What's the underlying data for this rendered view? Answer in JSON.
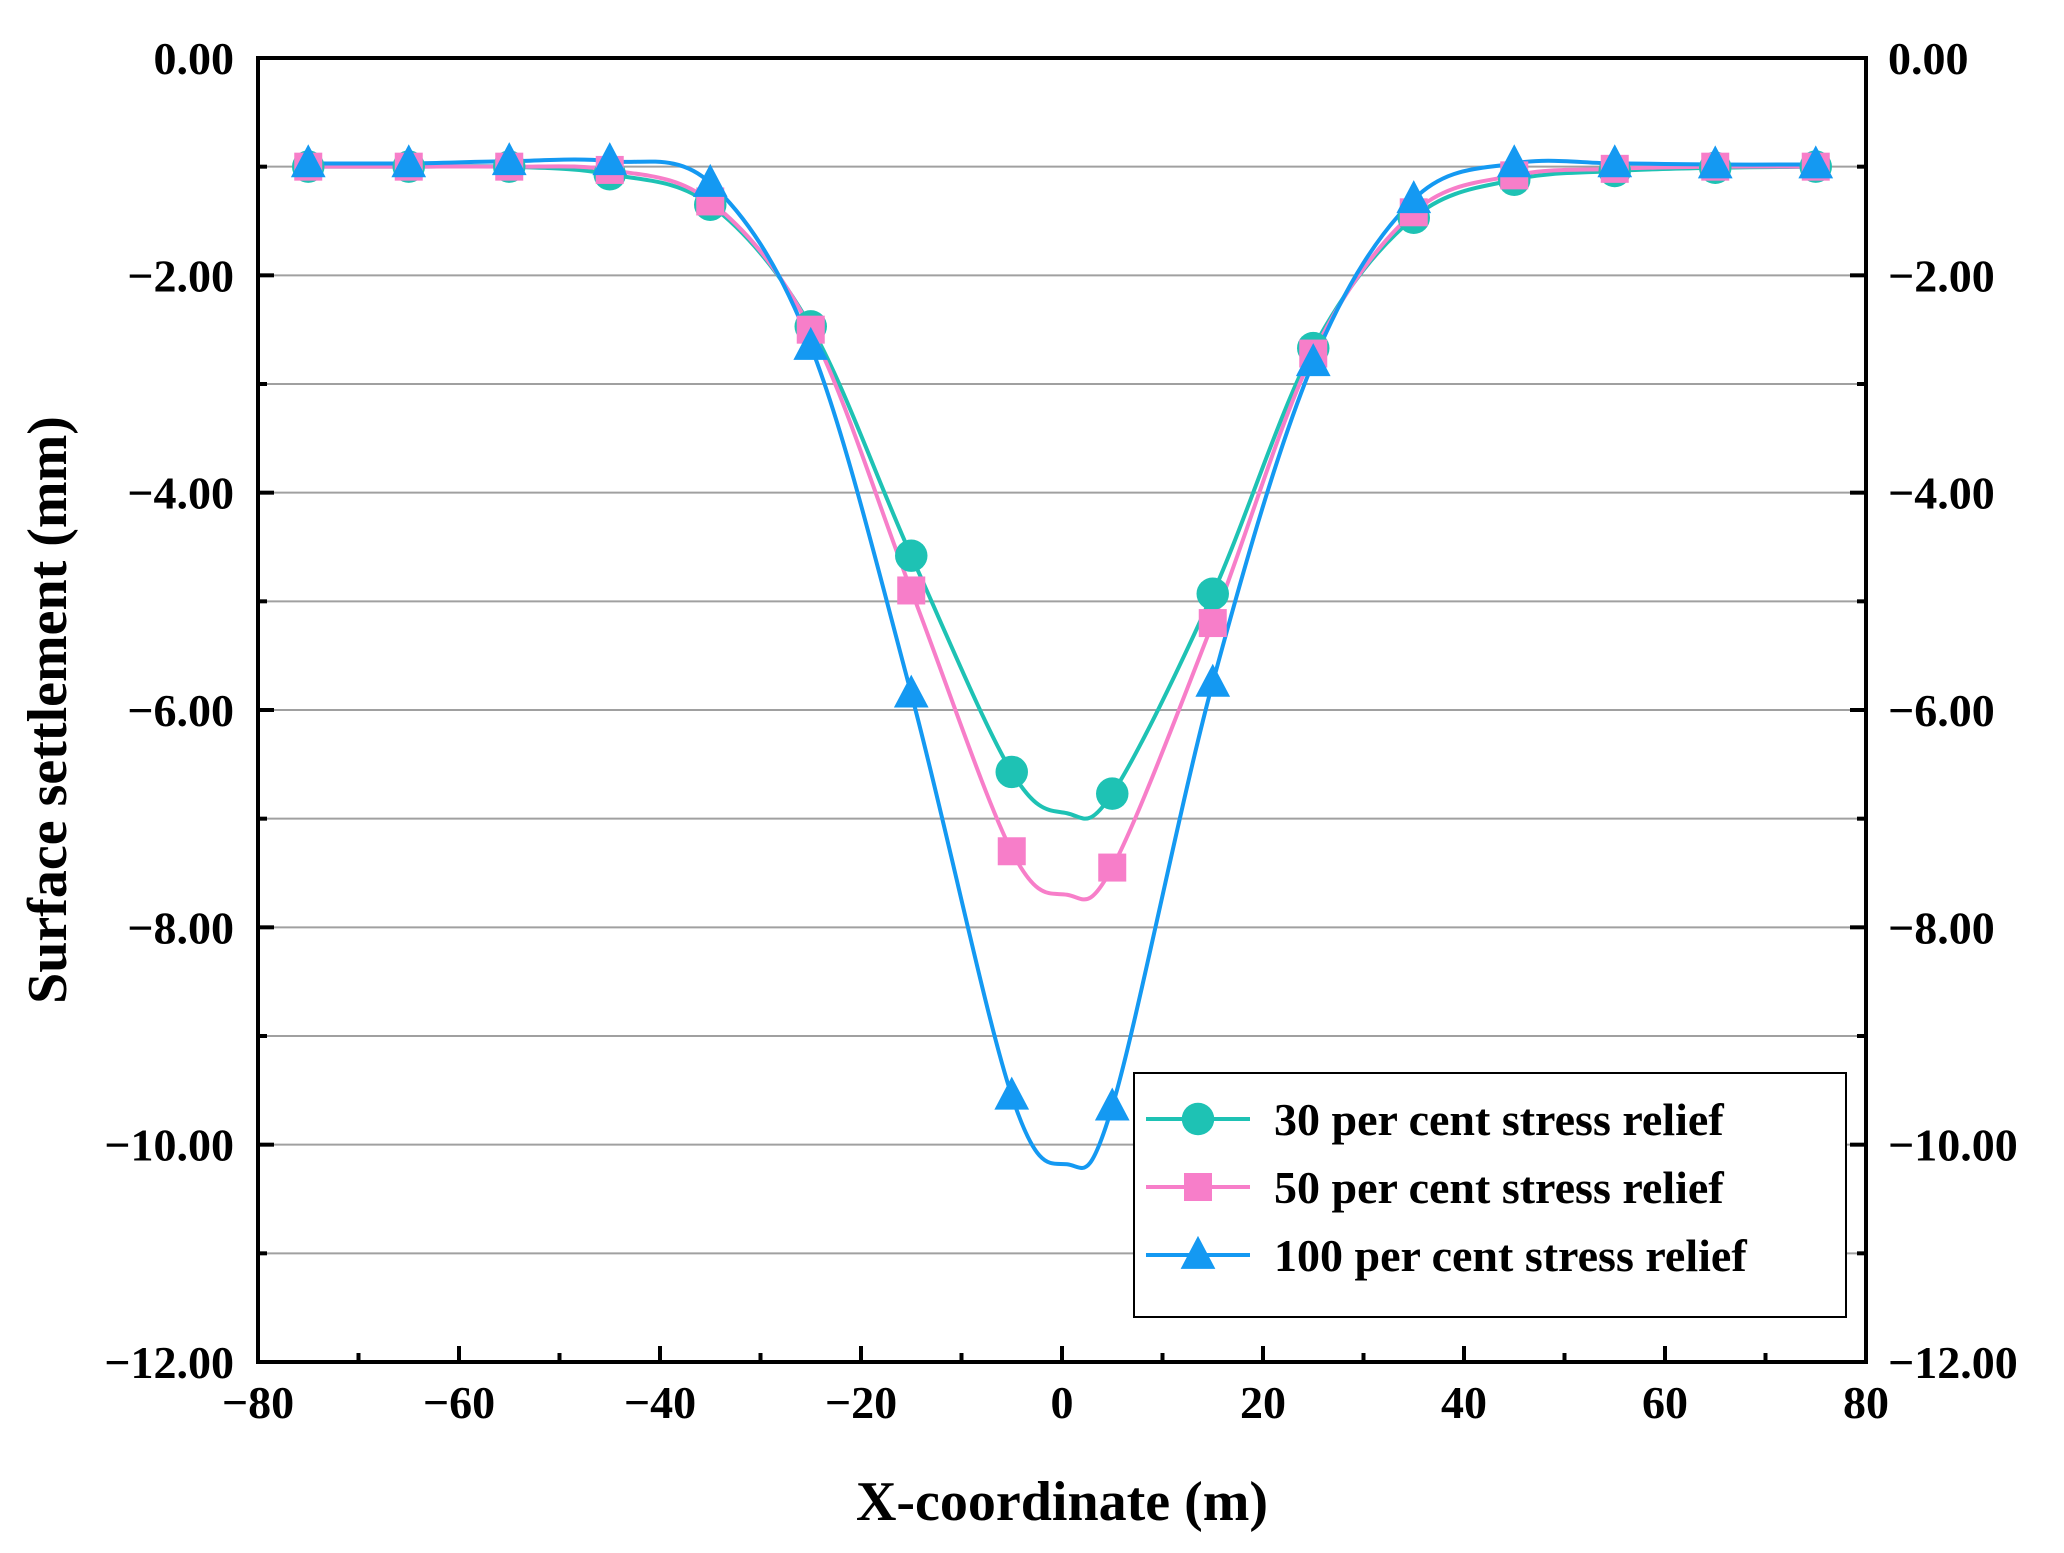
{
  "chart_data": {
    "type": "line",
    "title": "",
    "xlabel": "X-coordinate (m)",
    "ylabel": "Surface settlement (mm)",
    "xlim": [
      -80,
      80
    ],
    "ylim": [
      -12,
      0
    ],
    "x_ticks": [
      "−80",
      "−60",
      "−40",
      "−20",
      "0",
      "20",
      "40",
      "60",
      "80"
    ],
    "y_ticks_left": [
      "0.00",
      "−2.00",
      "−4.00",
      "−6.00",
      "−8.00",
      "−10.00",
      "−12.00"
    ],
    "y_ticks_right": [
      "0.00",
      "−2.00",
      "−4.00",
      "−6.00",
      "−8.00",
      "−10.00",
      "−12.00"
    ],
    "grid": "horizontal",
    "legend_position": "bottom-right",
    "x": [
      -75,
      -65,
      -55,
      -45,
      -35,
      -25,
      -15,
      -5,
      5,
      15,
      25,
      35,
      45,
      55,
      65,
      75
    ],
    "series": [
      {
        "name": "30 per cent stress relief",
        "marker": "circle",
        "color": "#1ec2b4",
        "values": [
          -1.0,
          -1.0,
          -1.0,
          -1.07,
          -1.35,
          -2.47,
          -4.58,
          -6.57,
          -6.77,
          -4.93,
          -2.67,
          -1.47,
          -1.12,
          -1.04,
          -1.01,
          -1.0
        ],
        "curve_min": -6.95
      },
      {
        "name": "50 per cent stress relief",
        "marker": "square",
        "color": "#f77ec9",
        "values": [
          -1.0,
          -1.0,
          -1.0,
          -1.03,
          -1.32,
          -2.5,
          -4.9,
          -7.3,
          -7.45,
          -5.2,
          -2.72,
          -1.42,
          -1.08,
          -1.02,
          -1.0,
          -1.0
        ],
        "curve_min": -7.7
      },
      {
        "name": "100 per cent stress relief",
        "marker": "triangle",
        "color": "#1499f2",
        "values": [
          -0.97,
          -0.97,
          -0.95,
          -0.95,
          -1.15,
          -2.65,
          -5.85,
          -9.55,
          -9.65,
          -5.75,
          -2.8,
          -1.3,
          -0.97,
          -0.97,
          -0.98,
          -0.98
        ],
        "curve_min": -10.18
      }
    ]
  }
}
